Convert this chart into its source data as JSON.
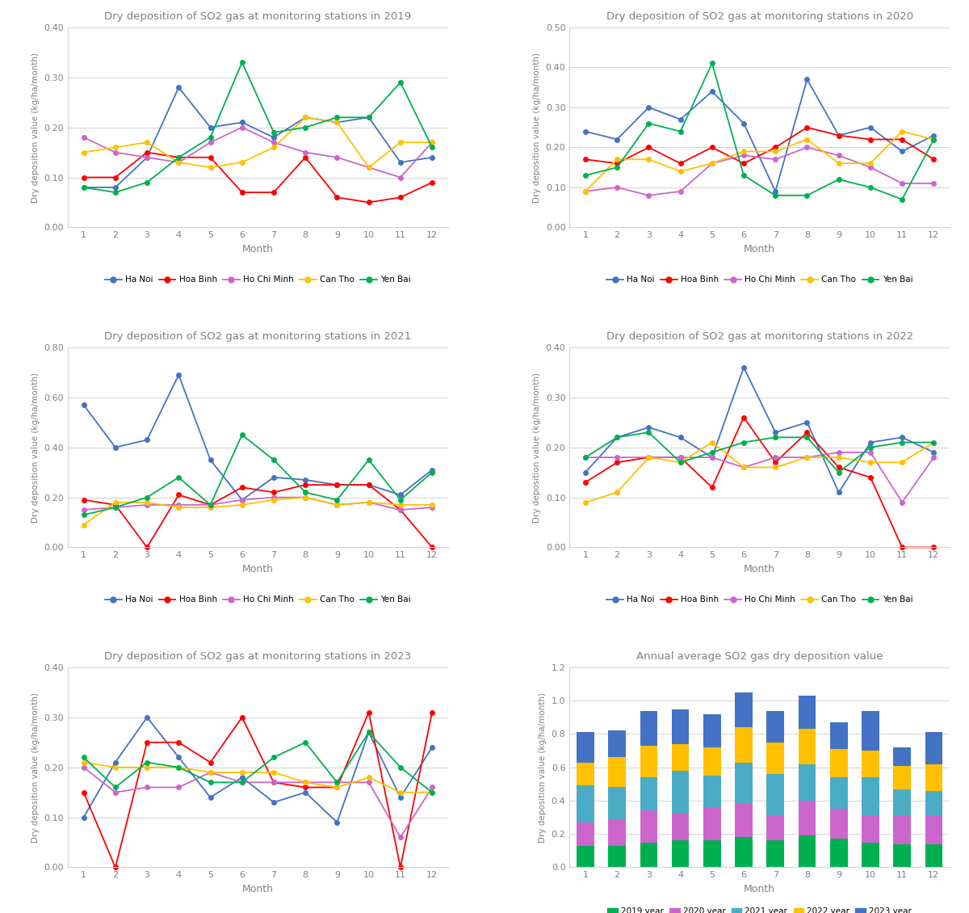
{
  "months": [
    1,
    2,
    3,
    4,
    5,
    6,
    7,
    8,
    9,
    10,
    11,
    12
  ],
  "colors": {
    "Ha Noi": "#4472c4",
    "Hoa Binh": "#ff0000",
    "Ho Chi Minh": "#cc66cc",
    "Can Tho": "#ffc000",
    "Yen Bai": "#00b050"
  },
  "2019": {
    "Ha Noi": [
      0.08,
      0.08,
      0.14,
      0.28,
      0.2,
      0.21,
      0.18,
      0.22,
      0.21,
      0.22,
      0.13,
      0.14
    ],
    "Hoa Binh": [
      0.1,
      0.1,
      0.15,
      0.14,
      0.14,
      0.07,
      0.07,
      0.14,
      0.06,
      0.05,
      0.06,
      0.09
    ],
    "Ho Chi Minh": [
      0.18,
      0.15,
      0.14,
      0.13,
      0.17,
      0.2,
      0.17,
      0.15,
      0.14,
      0.12,
      0.1,
      0.17
    ],
    "Can Tho": [
      0.15,
      0.16,
      0.17,
      0.13,
      0.12,
      0.13,
      0.16,
      0.22,
      0.21,
      0.12,
      0.17,
      0.17
    ],
    "Yen Bai": [
      0.08,
      0.07,
      0.09,
      0.14,
      0.18,
      0.33,
      0.19,
      0.2,
      0.22,
      0.22,
      0.29,
      0.16
    ],
    "ylim": [
      0.0,
      0.4
    ],
    "yticks": [
      0.0,
      0.1,
      0.2,
      0.3,
      0.4
    ]
  },
  "2020": {
    "Ha Noi": [
      0.24,
      0.22,
      0.3,
      0.27,
      0.34,
      0.26,
      0.09,
      0.37,
      0.23,
      0.25,
      0.19,
      0.23
    ],
    "Hoa Binh": [
      0.17,
      0.16,
      0.2,
      0.16,
      0.2,
      0.16,
      0.2,
      0.25,
      0.23,
      0.22,
      0.22,
      0.17
    ],
    "Ho Chi Minh": [
      0.09,
      0.1,
      0.08,
      0.09,
      0.16,
      0.18,
      0.17,
      0.2,
      0.18,
      0.15,
      0.11,
      0.11
    ],
    "Can Tho": [
      0.09,
      0.17,
      0.17,
      0.14,
      0.16,
      0.19,
      0.19,
      0.22,
      0.16,
      0.16,
      0.24,
      0.22
    ],
    "Yen Bai": [
      0.13,
      0.15,
      0.26,
      0.24,
      0.41,
      0.13,
      0.08,
      0.08,
      0.12,
      0.1,
      0.07,
      0.22
    ],
    "ylim": [
      0.0,
      0.5
    ],
    "yticks": [
      0.0,
      0.1,
      0.2,
      0.3,
      0.4,
      0.5
    ]
  },
  "2021": {
    "Ha Noi": [
      0.57,
      0.4,
      0.43,
      0.69,
      0.35,
      0.19,
      0.28,
      0.27,
      0.25,
      0.25,
      0.21,
      0.31
    ],
    "Hoa Binh": [
      0.19,
      0.17,
      0.0,
      0.21,
      0.17,
      0.24,
      0.22,
      0.25,
      0.25,
      0.25,
      0.15,
      0.0
    ],
    "Ho Chi Minh": [
      0.15,
      0.16,
      0.17,
      0.17,
      0.17,
      0.19,
      0.2,
      0.2,
      0.17,
      0.18,
      0.15,
      0.16
    ],
    "Can Tho": [
      0.09,
      0.18,
      0.18,
      0.16,
      0.16,
      0.17,
      0.19,
      0.2,
      0.17,
      0.18,
      0.17,
      0.17
    ],
    "Yen Bai": [
      0.13,
      0.16,
      0.2,
      0.28,
      0.17,
      0.45,
      0.35,
      0.22,
      0.19,
      0.35,
      0.19,
      0.3
    ],
    "ylim": [
      0.0,
      0.8
    ],
    "yticks": [
      0.0,
      0.2,
      0.4,
      0.6,
      0.8
    ]
  },
  "2022": {
    "Ha Noi": [
      0.15,
      0.22,
      0.24,
      0.22,
      0.18,
      0.36,
      0.23,
      0.25,
      0.11,
      0.21,
      0.22,
      0.19
    ],
    "Hoa Binh": [
      0.13,
      0.17,
      0.18,
      0.18,
      0.12,
      0.26,
      0.17,
      0.23,
      0.16,
      0.14,
      0.0,
      0.0
    ],
    "Ho Chi Minh": [
      0.18,
      0.18,
      0.18,
      0.18,
      0.18,
      0.16,
      0.18,
      0.18,
      0.19,
      0.19,
      0.09,
      0.18
    ],
    "Can Tho": [
      0.09,
      0.11,
      0.18,
      0.17,
      0.21,
      0.16,
      0.16,
      0.18,
      0.18,
      0.17,
      0.17,
      0.21
    ],
    "Yen Bai": [
      0.18,
      0.22,
      0.23,
      0.17,
      0.19,
      0.21,
      0.22,
      0.22,
      0.15,
      0.2,
      0.21,
      0.21
    ],
    "ylim": [
      0.0,
      0.4
    ],
    "yticks": [
      0.0,
      0.1,
      0.2,
      0.3,
      0.4
    ]
  },
  "2023": {
    "Ha Noi": [
      0.1,
      0.21,
      0.3,
      0.22,
      0.14,
      0.18,
      0.13,
      0.15,
      0.09,
      0.27,
      0.14,
      0.24
    ],
    "Hoa Binh": [
      0.15,
      0.0,
      0.25,
      0.25,
      0.21,
      0.3,
      0.17,
      0.16,
      0.16,
      0.31,
      0.0,
      0.31
    ],
    "Ho Chi Minh": [
      0.2,
      0.15,
      0.16,
      0.16,
      0.19,
      0.17,
      0.17,
      0.17,
      0.17,
      0.17,
      0.06,
      0.16
    ],
    "Can Tho": [
      0.21,
      0.2,
      0.2,
      0.2,
      0.19,
      0.19,
      0.19,
      0.17,
      0.16,
      0.18,
      0.15,
      0.15
    ],
    "Yen Bai": [
      0.22,
      0.16,
      0.21,
      0.2,
      0.17,
      0.17,
      0.22,
      0.25,
      0.17,
      0.27,
      0.2,
      0.15
    ],
    "ylim": [
      0.0,
      0.4
    ],
    "yticks": [
      0.0,
      0.1,
      0.2,
      0.3,
      0.4
    ]
  },
  "bar_data": {
    "2019": [
      0.13,
      0.13,
      0.15,
      0.16,
      0.16,
      0.18,
      0.16,
      0.19,
      0.17,
      0.15,
      0.14,
      0.14
    ],
    "2020": [
      0.14,
      0.16,
      0.19,
      0.16,
      0.2,
      0.2,
      0.15,
      0.21,
      0.18,
      0.16,
      0.17,
      0.17
    ],
    "2021": [
      0.22,
      0.19,
      0.2,
      0.26,
      0.19,
      0.25,
      0.25,
      0.22,
      0.19,
      0.23,
      0.16,
      0.15
    ],
    "2022": [
      0.14,
      0.18,
      0.19,
      0.16,
      0.17,
      0.21,
      0.19,
      0.21,
      0.17,
      0.16,
      0.14,
      0.16
    ],
    "2023": [
      0.18,
      0.16,
      0.21,
      0.21,
      0.2,
      0.21,
      0.19,
      0.2,
      0.16,
      0.24,
      0.11,
      0.19
    ],
    "bar_colors": {
      "2019": "#00b050",
      "2020": "#cc66cc",
      "2021": "#4bacc6",
      "2022": "#ffc000",
      "2023": "#4472c4"
    },
    "ylim": [
      0,
      1.2
    ],
    "yticks": [
      0,
      0.2,
      0.4,
      0.6,
      0.8,
      1.0,
      1.2
    ]
  },
  "legend_labels": [
    "Ha Noi",
    "Hoa Binh",
    "Ho Chi Minh",
    "Can Tho",
    "Yen Bai"
  ],
  "bar_legend_labels": [
    "2019 year",
    "2020 year",
    "2021 year",
    "2022 year",
    "2023 year"
  ],
  "xlabel": "Month",
  "ylabel": "Dry deposition value (kg/ha/month)"
}
